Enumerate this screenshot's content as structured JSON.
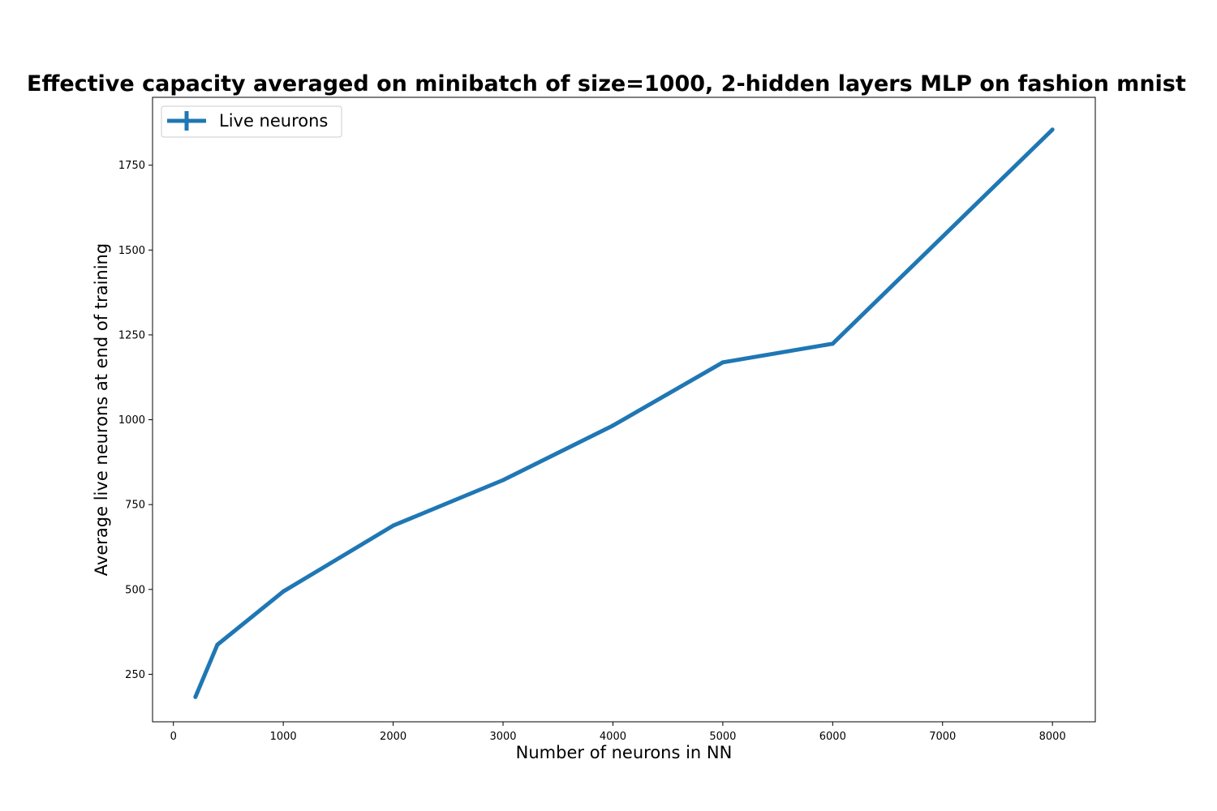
{
  "chart_data": {
    "type": "line",
    "title": "Effective capacity averaged on minibatch of size=1000, 2-hidden layers MLP on fashion mnist",
    "xlabel": "Number of neurons in NN",
    "ylabel": "Average live neurons at end of training",
    "xlim": [
      -190,
      8390
    ],
    "ylim": [
      110,
      1950
    ],
    "xticks": [
      0,
      1000,
      2000,
      3000,
      4000,
      5000,
      6000,
      7000,
      8000
    ],
    "yticks": [
      250,
      500,
      750,
      1000,
      1250,
      1500,
      1750
    ],
    "grid": false,
    "legend_position": "top-left",
    "series": [
      {
        "name": "Live neurons",
        "color": "#1f77b4",
        "marker": "plus",
        "x": [
          200,
          400,
          1000,
          2000,
          3000,
          4000,
          5000,
          6000,
          8000
        ],
        "y": [
          183,
          337,
          494,
          688,
          822,
          983,
          1169,
          1224,
          1855
        ]
      }
    ]
  }
}
